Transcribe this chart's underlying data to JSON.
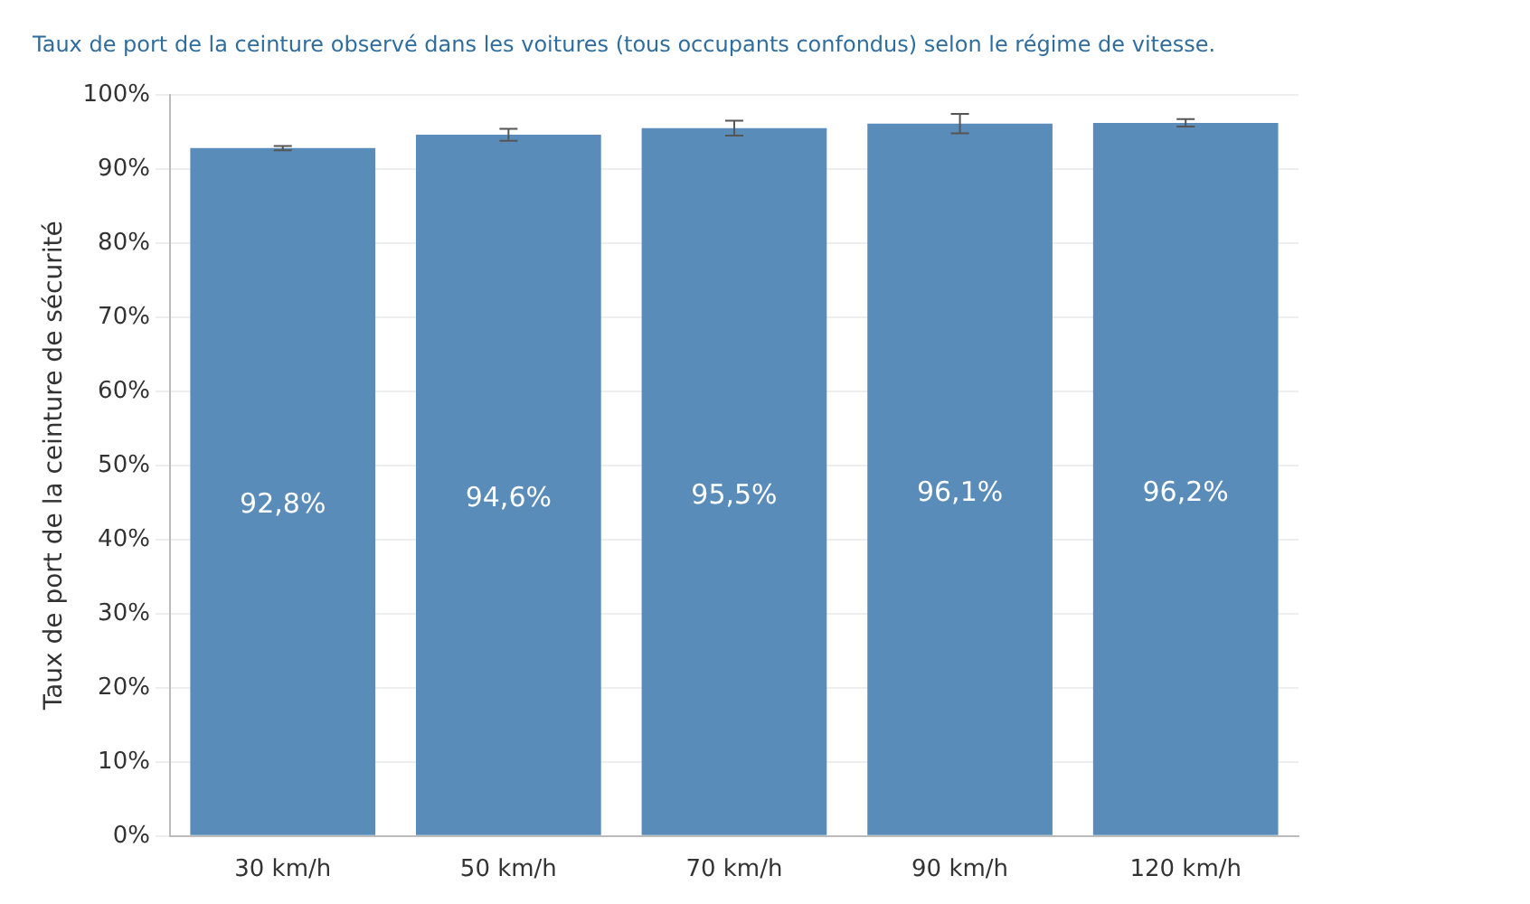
{
  "chart_data": {
    "type": "bar",
    "title": "Taux de port de la ceinture observé dans les voitures (tous occupants confondus) selon le régime de vitesse.",
    "ylabel": "Taux de port de la ceinture de sécurité",
    "categories": [
      "30 km/h",
      "50 km/h",
      "70 km/h",
      "90 km/h",
      "120 km/h"
    ],
    "values": [
      92.8,
      94.6,
      95.5,
      96.1,
      96.2
    ],
    "value_labels": [
      "92,8%",
      "94,6%",
      "95,5%",
      "96,1%",
      "96,2%"
    ],
    "errors": [
      0.3,
      0.8,
      1,
      1.3,
      0.5
    ],
    "color": "#5a8cb9",
    "ylim": [
      0,
      100
    ],
    "yticks": [
      {
        "value": 0,
        "label": "0%"
      },
      {
        "value": 10,
        "label": "10%"
      },
      {
        "value": 20,
        "label": "20%"
      },
      {
        "value": 30,
        "label": "30%"
      },
      {
        "value": 40,
        "label": "40%"
      },
      {
        "value": 50,
        "label": "50%"
      },
      {
        "value": 60,
        "label": "60%"
      },
      {
        "value": 70,
        "label": "70%"
      },
      {
        "value": 80,
        "label": "80%"
      },
      {
        "value": 90,
        "label": "90%"
      },
      {
        "value": 100,
        "label": "100%"
      }
    ],
    "grid": "y",
    "legend": false
  }
}
